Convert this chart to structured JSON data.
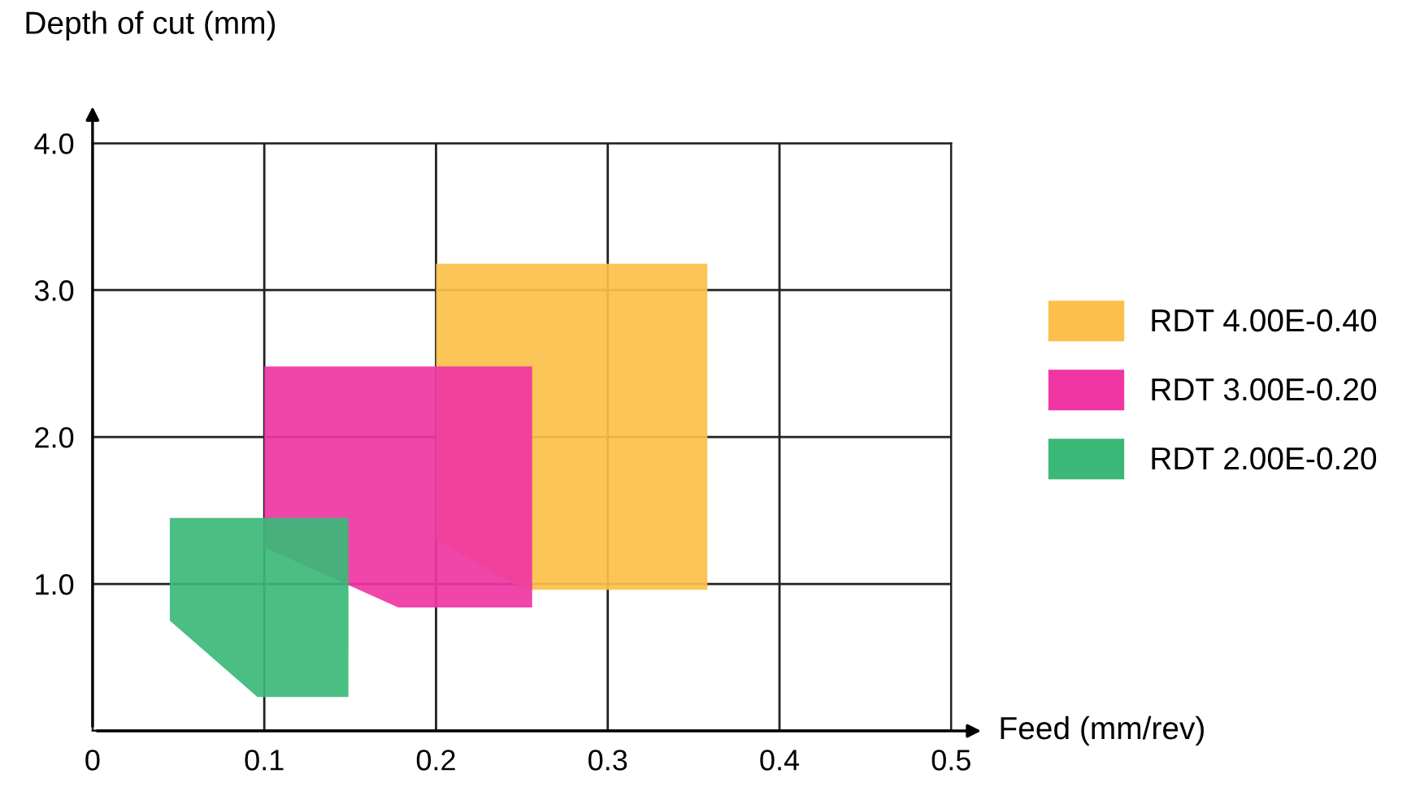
{
  "chart_data": {
    "type": "area",
    "xlabel": "Feed (mm/rev)",
    "ylabel": "Depth of cut (mm)",
    "xlim": [
      0,
      0.5
    ],
    "ylim": [
      0,
      4.0
    ],
    "xticks": [
      0,
      0.1,
      0.2,
      0.3,
      0.4,
      0.5
    ],
    "yticks": [
      {
        "value": 0,
        "label": null
      },
      {
        "value": 1.0,
        "label": "1.0"
      },
      {
        "value": 2.0,
        "label": "2.0"
      },
      {
        "value": 3.0,
        "label": "3.0"
      },
      {
        "value": 4.0,
        "label": "4.0"
      }
    ],
    "grid": true,
    "legend": "right",
    "series": [
      {
        "name": "RDT 4.00E-0.40",
        "color": "#fcc04a",
        "x": [
          0.2,
          0.358,
          0.358,
          0.251,
          0.2,
          0.2
        ],
        "values": [
          3.18,
          3.18,
          0.96,
          0.96,
          1.3,
          3.18
        ]
      },
      {
        "name": "RDT 3.00E-0.20",
        "color": "#ef36a3",
        "x": [
          0.1,
          0.256,
          0.256,
          0.178,
          0.1,
          0.1
        ],
        "values": [
          2.48,
          2.48,
          0.84,
          0.84,
          1.25,
          2.48
        ]
      },
      {
        "name": "RDT 2.00E-0.20",
        "color": "#3bb878",
        "x": [
          0.045,
          0.149,
          0.149,
          0.096,
          0.045,
          0.045
        ],
        "values": [
          1.45,
          1.45,
          0.23,
          0.23,
          0.75,
          1.45
        ]
      }
    ]
  }
}
